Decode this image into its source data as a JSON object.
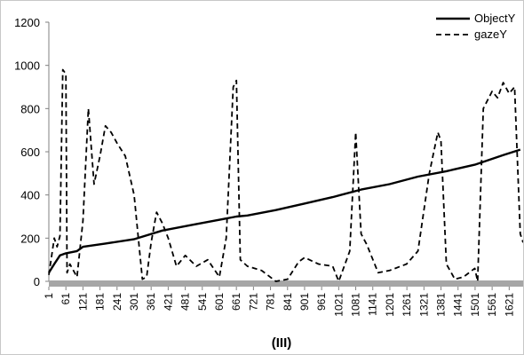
{
  "chart_data": {
    "type": "line",
    "title": "",
    "xlabel": "(III)",
    "ylabel": "",
    "xlim": [
      1,
      1670
    ],
    "ylim": [
      0,
      1200
    ],
    "y_ticks": [
      "0",
      "200",
      "400",
      "600",
      "800",
      "1000",
      "1200"
    ],
    "x_ticks": [
      "1",
      "61",
      "121",
      "181",
      "241",
      "301",
      "361",
      "421",
      "481",
      "541",
      "601",
      "661",
      "721",
      "781",
      "841",
      "901",
      "961",
      "1021",
      "1081",
      "1141",
      "1201",
      "1261",
      "1321",
      "1381",
      "1441",
      "1501",
      "1561",
      "1621"
    ],
    "grid": false,
    "legend_position": "top-right",
    "series": [
      {
        "name": "ObjectY",
        "style": "solid",
        "x": [
          1,
          20,
          40,
          61,
          100,
          121,
          200,
          300,
          400,
          500,
          600,
          661,
          700,
          800,
          900,
          1000,
          1100,
          1200,
          1300,
          1400,
          1500,
          1600,
          1660
        ],
        "y": [
          40,
          80,
          120,
          130,
          140,
          160,
          175,
          195,
          235,
          260,
          285,
          300,
          305,
          330,
          360,
          390,
          425,
          450,
          485,
          510,
          540,
          585,
          610
        ]
      },
      {
        "name": "gazeY",
        "style": "dashed",
        "x": [
          1,
          20,
          30,
          40,
          50,
          61,
          65,
          75,
          100,
          121,
          140,
          160,
          181,
          200,
          220,
          241,
          270,
          301,
          330,
          345,
          361,
          380,
          400,
          421,
          450,
          481,
          520,
          560,
          601,
          625,
          650,
          661,
          675,
          700,
          750,
          800,
          841,
          880,
          901,
          950,
          1000,
          1021,
          1060,
          1081,
          1100,
          1120,
          1160,
          1200,
          1260,
          1300,
          1340,
          1370,
          1381,
          1400,
          1430,
          1460,
          1500,
          1510,
          1530,
          1561,
          1580,
          1600,
          1621,
          1640,
          1660,
          1670
        ],
        "y": [
          30,
          200,
          160,
          210,
          980,
          960,
          40,
          80,
          20,
          280,
          800,
          450,
          580,
          720,
          690,
          640,
          580,
          400,
          10,
          20,
          180,
          320,
          270,
          200,
          70,
          120,
          70,
          100,
          20,
          200,
          900,
          930,
          100,
          70,
          50,
          0,
          10,
          90,
          110,
          80,
          70,
          0,
          140,
          690,
          220,
          170,
          40,
          50,
          80,
          140,
          500,
          690,
          650,
          80,
          10,
          20,
          60,
          0,
          800,
          880,
          850,
          920,
          870,
          900,
          220,
          180
        ]
      }
    ]
  }
}
